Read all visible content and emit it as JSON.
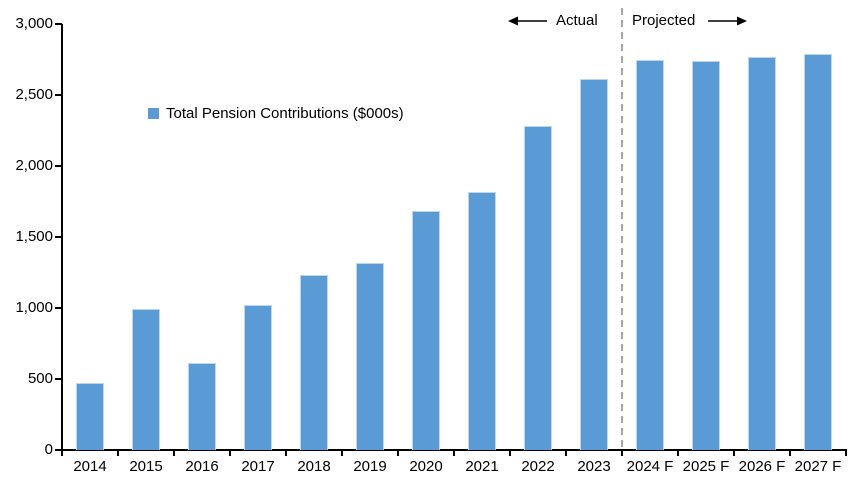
{
  "chart_data": {
    "type": "bar",
    "title": "",
    "legend": "Total Pension Contributions ($000s)",
    "categories": [
      "2014",
      "2015",
      "2016",
      "2017",
      "2018",
      "2019",
      "2020",
      "2021",
      "2022",
      "2023",
      "2024 F",
      "2025 F",
      "2026 F",
      "2027 F"
    ],
    "values": [
      470,
      990,
      610,
      1020,
      1230,
      1320,
      1680,
      1820,
      2280,
      2610,
      2750,
      2740,
      2765,
      2790
    ],
    "xlabel": "",
    "ylabel": "",
    "ylim": [
      0,
      3000
    ],
    "ytick_step": 500,
    "ytick_labels": [
      "0",
      "500",
      "1,000",
      "1,500",
      "2,000",
      "2,500",
      "3,000"
    ],
    "grid": false,
    "legend_position": "inside-upper-left",
    "bar_color": "#5B9BD5",
    "bar_border_color": "#BDD7EE",
    "axis_color": "#000000",
    "divider_after_index": 9,
    "divider_color": "#A6A6A6",
    "annotations": {
      "left_label": "Actual",
      "right_label": "Projected",
      "left_arrow": "left-arrow",
      "right_arrow": "right-arrow"
    }
  }
}
